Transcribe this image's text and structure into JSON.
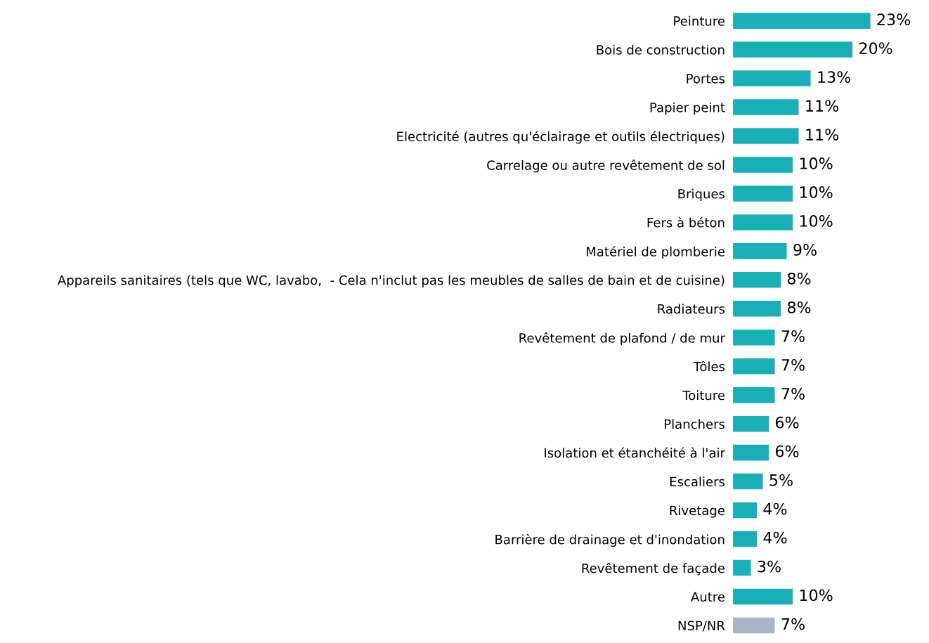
{
  "chart_data": {
    "type": "bar",
    "orientation": "horizontal",
    "value_labels": [
      "23%",
      "20%",
      "13%",
      "11%",
      "11%",
      "10%",
      "10%",
      "10%",
      "9%",
      "8%",
      "8%",
      "7%",
      "7%",
      "7%",
      "6%",
      "6%",
      "5%",
      "4%",
      "4%",
      "3%",
      "10%",
      "7%"
    ],
    "categories": [
      "Peinture",
      "Bois de construction",
      "Portes",
      "Papier peint",
      "Electricité (autres qu'éclairage et outils électriques)",
      "Carrelage ou autre revêtement de sol",
      "Briques",
      "Fers à béton",
      "Matériel de plomberie",
      "Appareils sanitaires (tels que WC, lavabo,  - Cela n'inclut pas les meubles de salles de bain et de cuisine)",
      "Radiateurs",
      "Revêtement de plafond / de mur",
      "Tôles",
      "Toiture",
      "Planchers",
      "Isolation et étanchéité à l'air",
      "Escaliers",
      "Rivetage",
      "Barrière de drainage et d'inondation",
      "Revêtement de façade",
      "Autre",
      "NSP/NR"
    ],
    "values": [
      23,
      20,
      13,
      11,
      11,
      10,
      10,
      10,
      9,
      8,
      8,
      7,
      7,
      7,
      6,
      6,
      5,
      4,
      4,
      3,
      10,
      7
    ],
    "colors": [
      "#17b0b7",
      "#17b0b7",
      "#17b0b7",
      "#17b0b7",
      "#17b0b7",
      "#17b0b7",
      "#17b0b7",
      "#17b0b7",
      "#17b0b7",
      "#17b0b7",
      "#17b0b7",
      "#17b0b7",
      "#17b0b7",
      "#17b0b7",
      "#17b0b7",
      "#17b0b7",
      "#17b0b7",
      "#17b0b7",
      "#17b0b7",
      "#17b0b7",
      "#17b0b7",
      "#aab4c8"
    ],
    "grid": false,
    "legend": false
  }
}
